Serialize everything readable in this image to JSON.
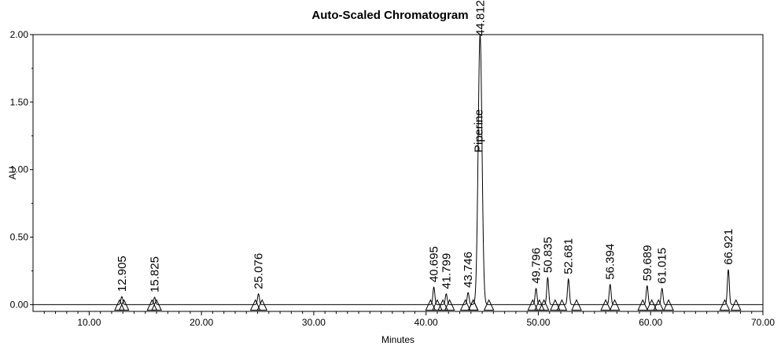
{
  "chart_data": {
    "type": "line",
    "title": "Auto-Scaled Chromatogram",
    "xlabel": "Minutes",
    "ylabel": "AU",
    "xlim": [
      5,
      70
    ],
    "ylim": [
      -0.05,
      2.0
    ],
    "x_ticks": [
      10,
      20,
      30,
      40,
      50,
      60,
      70
    ],
    "x_tick_labels": [
      "10.00",
      "20.00",
      "30.00",
      "40.00",
      "50.00",
      "60.00",
      "70.00"
    ],
    "y_ticks": [
      0,
      0.5,
      1.0,
      1.5,
      2.0
    ],
    "y_tick_labels": [
      "0.00",
      "0.50",
      "1.00",
      "1.50",
      "2.00"
    ],
    "grid": false,
    "line_color": "#000000",
    "peaks": [
      {
        "rt": 12.905,
        "label": "12.905",
        "height": 0.06,
        "start": 12.7,
        "end": 13.1
      },
      {
        "rt": 15.825,
        "label": "15.825",
        "height": 0.055,
        "start": 15.6,
        "end": 16.0
      },
      {
        "rt": 25.076,
        "label": "25.076",
        "height": 0.08,
        "start": 24.8,
        "end": 25.4
      },
      {
        "rt": 40.695,
        "label": "40.695",
        "height": 0.13,
        "start": 40.4,
        "end": 41.0
      },
      {
        "rt": 41.799,
        "label": "41.799",
        "height": 0.08,
        "start": 41.5,
        "end": 42.1
      },
      {
        "rt": 43.746,
        "label": "43.746",
        "height": 0.09,
        "start": 43.5,
        "end": 44.2
      },
      {
        "rt": 44.812,
        "label": "44.812",
        "name": "Piperine",
        "height": 2.0,
        "start": 44.2,
        "end": 45.6
      },
      {
        "rt": 49.796,
        "label": "49.796",
        "height": 0.12,
        "start": 49.5,
        "end": 50.1
      },
      {
        "rt": 50.835,
        "label": "50.835",
        "height": 0.2,
        "start": 50.5,
        "end": 51.5
      },
      {
        "rt": 52.681,
        "label": "52.681",
        "height": 0.19,
        "start": 52.1,
        "end": 53.4
      },
      {
        "rt": 56.394,
        "label": "56.394",
        "height": 0.15,
        "start": 56.0,
        "end": 56.8
      },
      {
        "rt": 59.689,
        "label": "59.689",
        "height": 0.14,
        "start": 59.3,
        "end": 60.1
      },
      {
        "rt": 61.015,
        "label": "61.015",
        "height": 0.12,
        "start": 60.7,
        "end": 61.6
      },
      {
        "rt": 66.921,
        "label": "66.921",
        "height": 0.26,
        "start": 66.6,
        "end": 67.6
      }
    ]
  }
}
